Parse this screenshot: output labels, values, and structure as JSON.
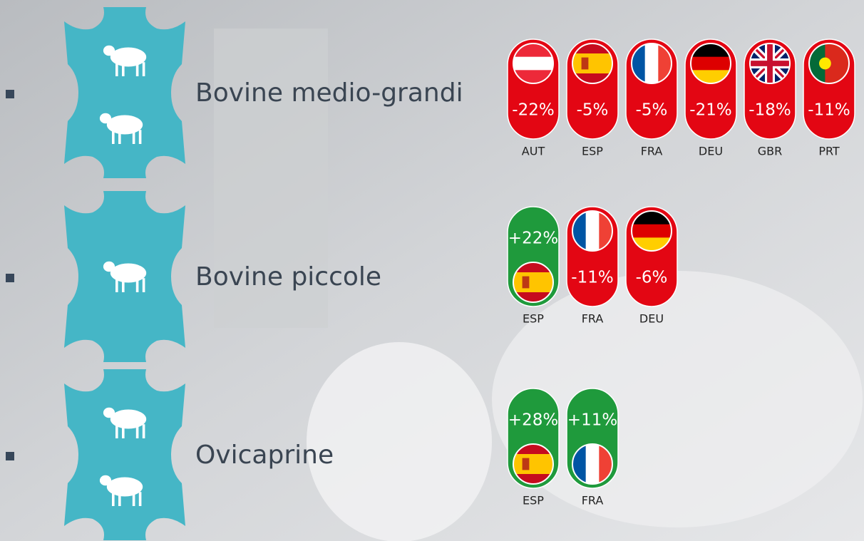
{
  "rows": [
    {
      "label": "Bovine medio-grandi",
      "items": [
        {
          "pct": "-22%",
          "code": "AUT",
          "color": "#e30613"
        },
        {
          "pct": "-5%",
          "code": "ESP",
          "color": "#e30613"
        },
        {
          "pct": "-5%",
          "code": "FRA",
          "color": "#e30613"
        },
        {
          "pct": "-21%",
          "code": "DEU",
          "color": "#e30613"
        },
        {
          "pct": "-18%",
          "code": "GBR",
          "color": "#e30613"
        },
        {
          "pct": "-11%",
          "code": "PRT",
          "color": "#e30613"
        }
      ]
    },
    {
      "label": "Bovine piccole",
      "items": [
        {
          "pct": "+22%",
          "code": "ESP",
          "color": "#1f9a3c"
        },
        {
          "pct": "-11%",
          "code": "FRA",
          "color": "#e30613"
        },
        {
          "pct": "-6%",
          "code": "DEU",
          "color": "#e30613"
        }
      ]
    },
    {
      "label": "Ovicaprine",
      "items": [
        {
          "pct": "+28%",
          "code": "ESP",
          "color": "#1f9a3c"
        },
        {
          "pct": "+11%",
          "code": "FRA",
          "color": "#1f9a3c"
        }
      ]
    }
  ]
}
